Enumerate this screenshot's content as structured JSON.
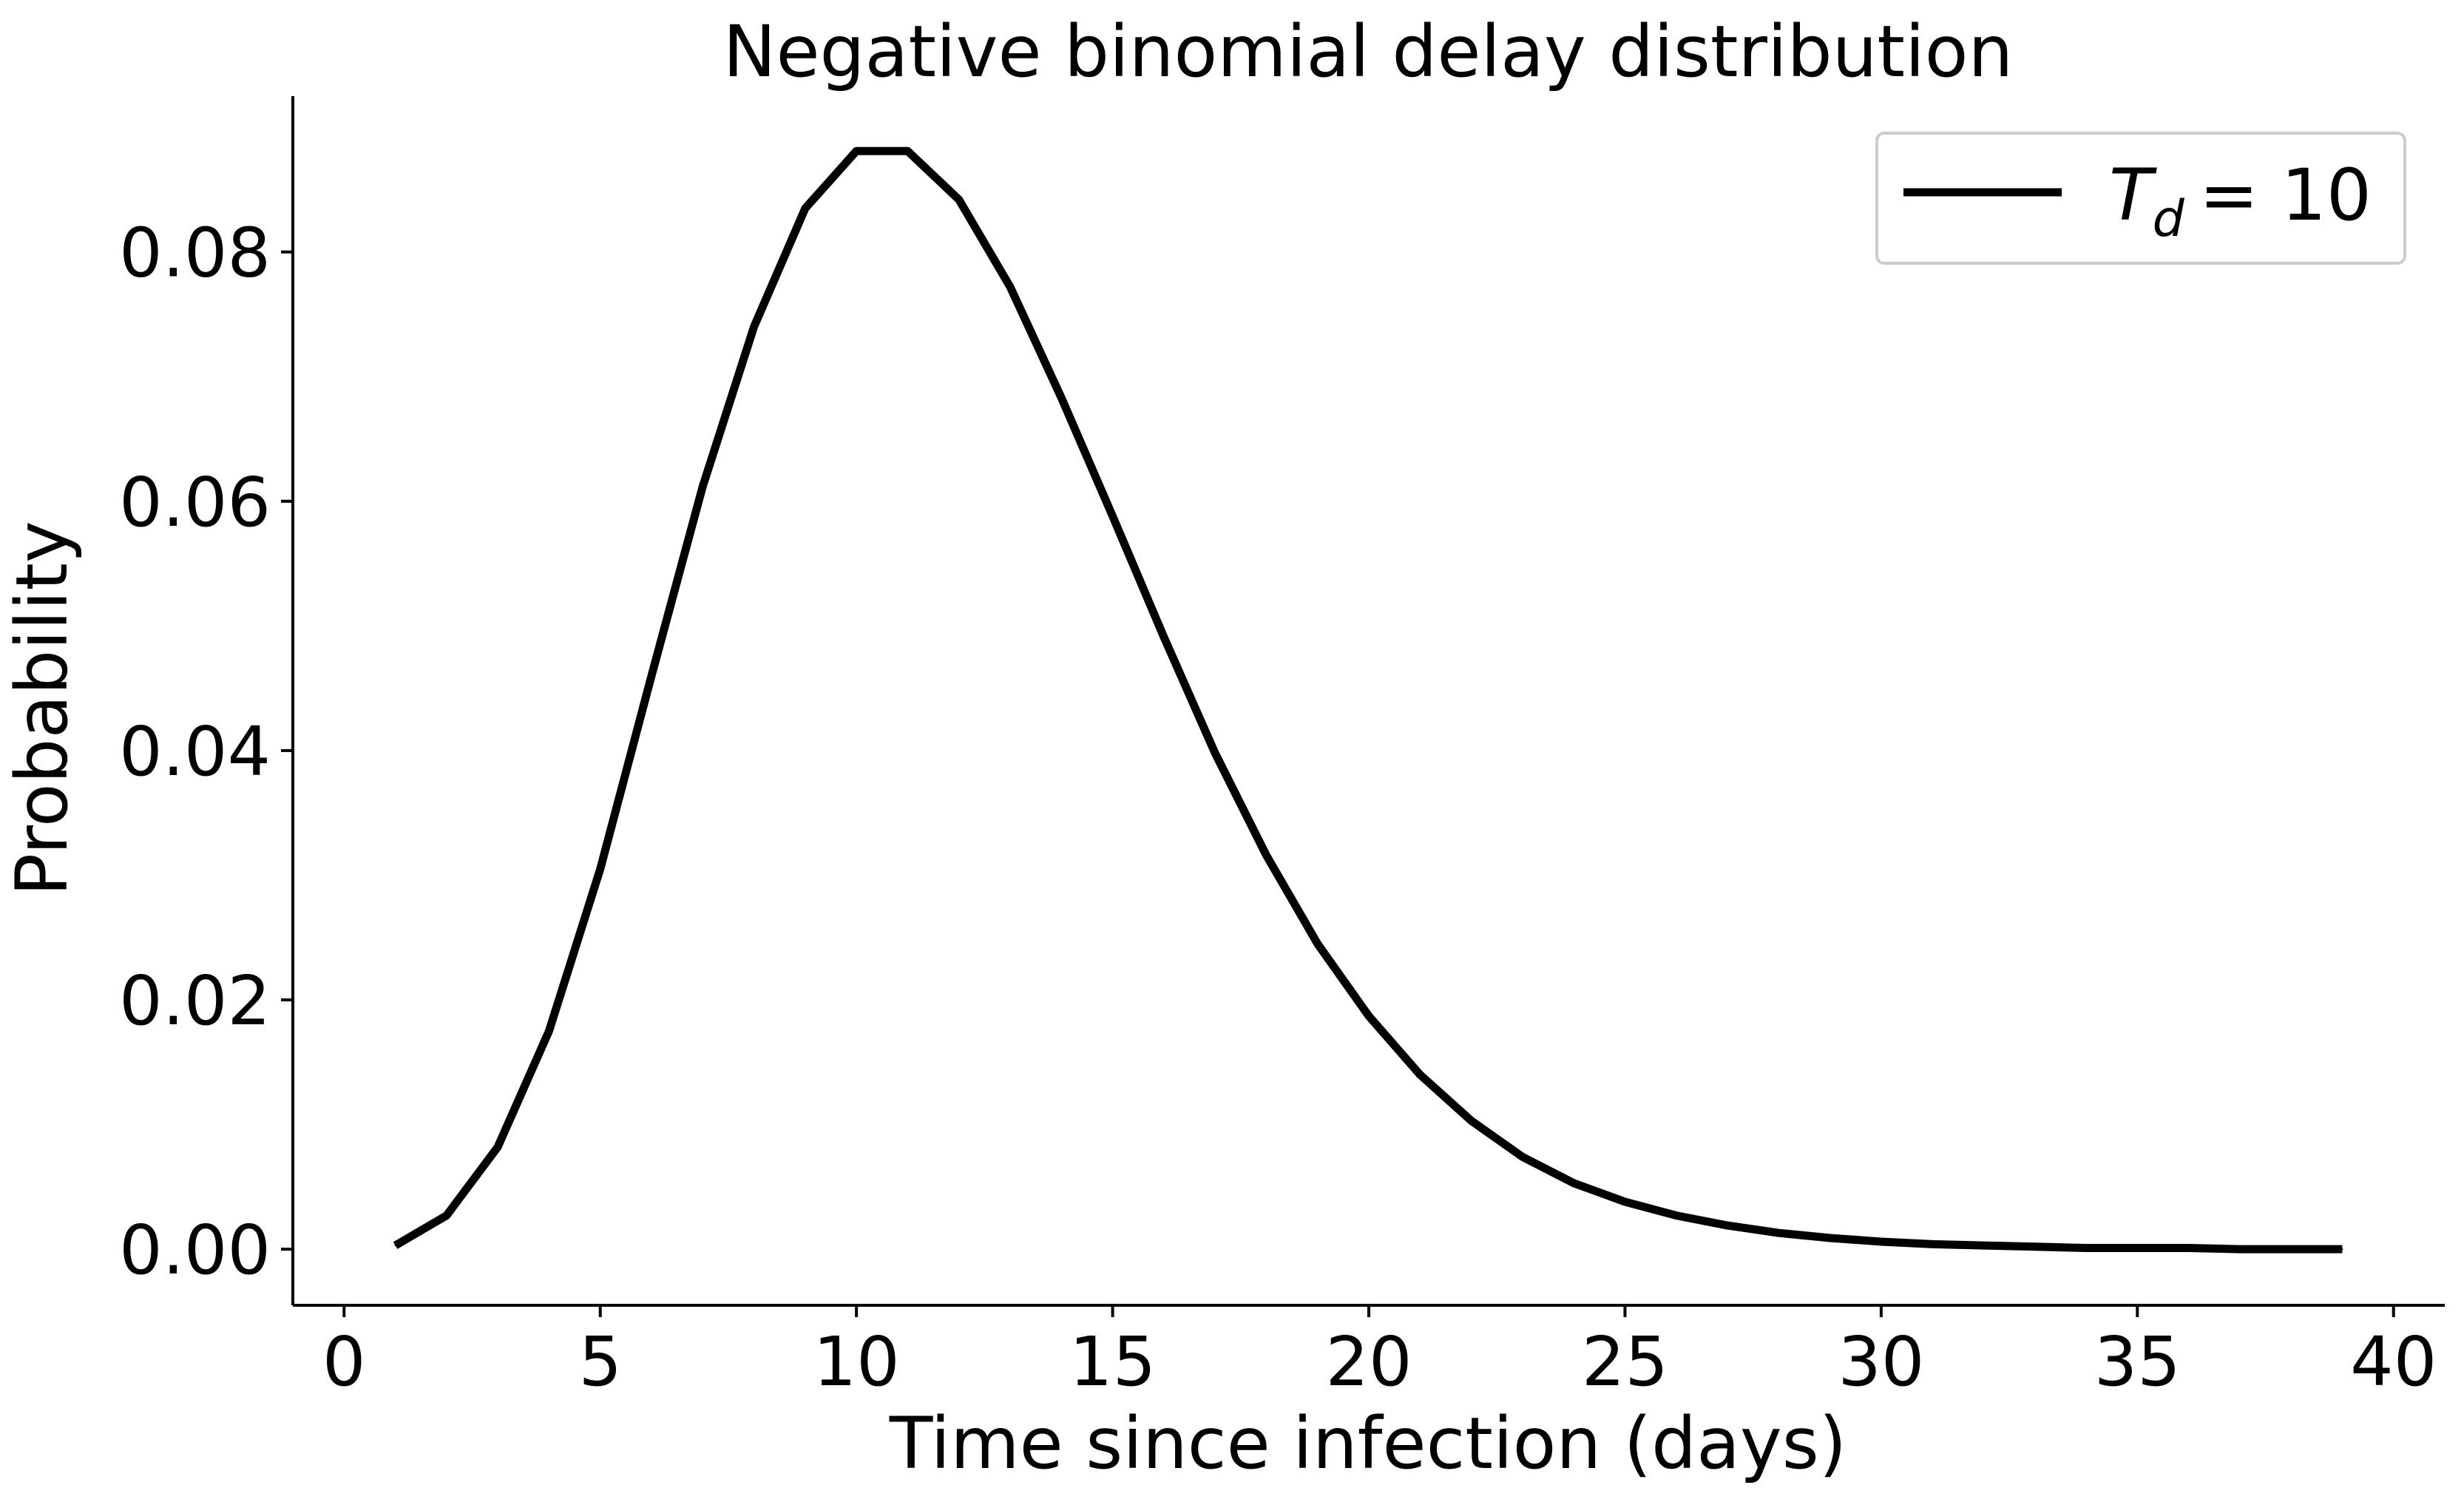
{
  "chart_data": {
    "type": "line",
    "title": "Negative binomial delay distribution",
    "xlabel": "Time since infection (days)",
    "ylabel": "Probability",
    "xlim": [
      -1,
      41
    ],
    "ylim": [
      -0.0045,
      0.0925
    ],
    "xticks": [
      0,
      5,
      10,
      15,
      20,
      25,
      30,
      35,
      40
    ],
    "xtick_labels": [
      "0",
      "5",
      "10",
      "15",
      "20",
      "25",
      "30",
      "35",
      "40"
    ],
    "yticks": [
      0.0,
      0.02,
      0.04,
      0.06,
      0.08
    ],
    "ytick_labels": [
      "0.00",
      "0.02",
      "0.04",
      "0.06",
      "0.08"
    ],
    "grid": false,
    "legend_position": "top-right",
    "series": [
      {
        "name": "T_d = 10",
        "legend_symbol": "T",
        "legend_subscript": "d",
        "legend_value": "= 10",
        "color": "#000000",
        "x": [
          1,
          2,
          3,
          4,
          5,
          6,
          7,
          8,
          9,
          10,
          11,
          12,
          13,
          14,
          15,
          16,
          17,
          18,
          19,
          20,
          21,
          22,
          23,
          24,
          25,
          26,
          27,
          28,
          29,
          30,
          31,
          32,
          33,
          34,
          35,
          36,
          37,
          38,
          39
        ],
        "y": [
          0.0003,
          0.0027,
          0.0082,
          0.0175,
          0.0305,
          0.046,
          0.0612,
          0.074,
          0.0835,
          0.0881,
          0.0881,
          0.0842,
          0.0772,
          0.0683,
          0.0588,
          0.0491,
          0.0398,
          0.0316,
          0.0245,
          0.0187,
          0.014,
          0.0103,
          0.0074,
          0.0053,
          0.0038,
          0.0027,
          0.0019,
          0.0013,
          0.0009,
          0.0006,
          0.0004,
          0.0003,
          0.0002,
          0.0001,
          0.0001,
          0.0001,
          0.0,
          0.0,
          0.0
        ]
      }
    ]
  }
}
